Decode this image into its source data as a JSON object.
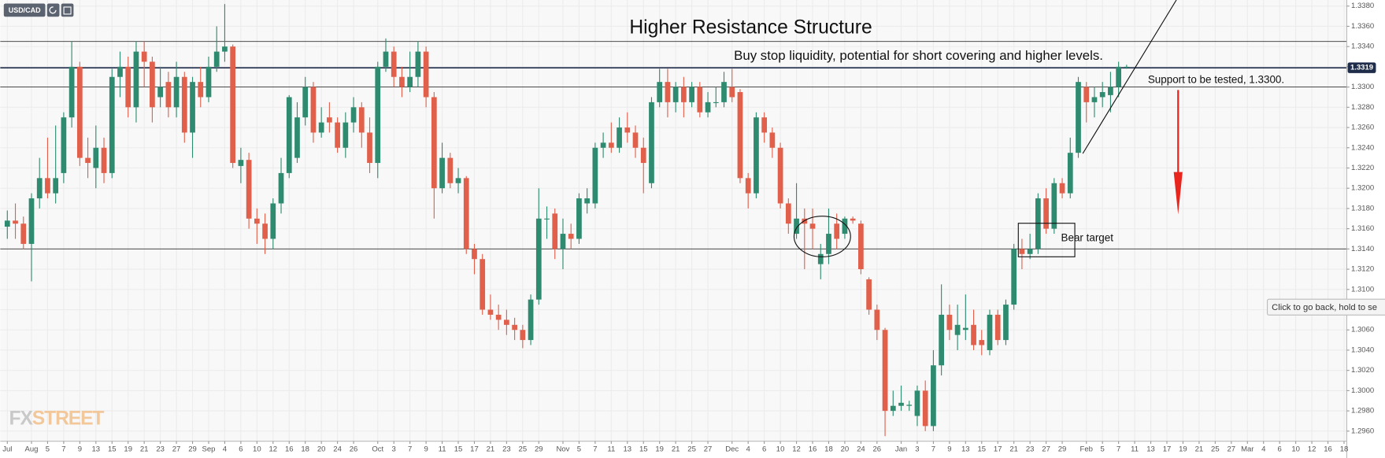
{
  "symbol": "USD/CAD",
  "watermark": {
    "left": "FX",
    "right": "STREET"
  },
  "tooltip": "Click to go back, hold to se",
  "chart_data": {
    "type": "candlestick",
    "title": "Higher Resistance Structure",
    "annotations": {
      "buy_stop": "Buy stop liquidity, potential for short covering and higher levels.",
      "support": "Support to be tested, 1.3300.",
      "bear_target": "Bear target"
    },
    "categories": [
      "Jul",
      null,
      null,
      "Aug",
      null,
      "5",
      null,
      "7",
      null,
      "9",
      null,
      "13",
      null,
      "15",
      null,
      "19",
      null,
      "21",
      null,
      "23",
      null,
      "27",
      null,
      "29",
      null,
      "Sep",
      null,
      "4",
      null,
      "6",
      null,
      "10",
      null,
      "12",
      null,
      "16",
      null,
      "18",
      null,
      "20",
      null,
      "24",
      null,
      "26",
      null,
      null,
      "Oct",
      null,
      "3",
      null,
      "7",
      null,
      "9",
      null,
      "11",
      null,
      "15",
      null,
      "17",
      null,
      "21",
      null,
      "23",
      null,
      "25",
      null,
      "29",
      null,
      null,
      "Nov",
      null,
      "5",
      null,
      "7",
      null,
      "11",
      null,
      "13",
      null,
      "15",
      null,
      "19",
      null,
      "21",
      null,
      "25",
      null,
      "27",
      null,
      null,
      "Dec",
      null,
      "4",
      null,
      "6",
      null,
      "10",
      null,
      "12",
      null,
      "16",
      null,
      "18",
      null,
      "20",
      null,
      "24",
      null,
      "26",
      null,
      null,
      "Jan",
      null,
      "3",
      null,
      "7",
      null,
      "9",
      null,
      "13",
      null,
      "15",
      null,
      "17",
      null,
      "21",
      null,
      "23",
      null,
      "27",
      null,
      "29",
      null,
      null,
      "Feb",
      null,
      "5",
      null,
      "7",
      null,
      "11",
      null,
      "13",
      null,
      "17",
      null,
      "19",
      null,
      "21",
      null,
      "25",
      null,
      "27",
      null,
      "Mar",
      null,
      "4",
      null,
      "6",
      null,
      "10",
      null,
      "12",
      null,
      "16",
      null,
      "18"
    ],
    "open": [
      1.3162,
      1.3168,
      1.3165,
      1.3145,
      1.319,
      1.321,
      1.3195,
      1.3215,
      1.327,
      1.332,
      1.323,
      1.322,
      1.324,
      1.3215,
      1.331,
      1.332,
      1.328,
      1.3335,
      1.3325,
      1.329,
      1.3305,
      1.328,
      1.331,
      1.3255,
      1.3305,
      1.329,
      1.332,
      1.3335,
      1.334,
      1.3222,
      1.3228,
      1.317,
      1.3165,
      1.315,
      1.3185,
      1.3215,
      1.323,
      1.327,
      1.33,
      1.3255,
      1.327,
      1.3265,
      1.324,
      1.3265,
      1.328,
      1.3255,
      1.3225,
      1.332,
      1.3335,
      1.331,
      1.33,
      1.331,
      1.3335,
      1.329,
      1.32,
      1.323,
      1.3205,
      1.321,
      1.314,
      1.313,
      1.308,
      1.3075,
      1.307,
      1.3065,
      1.306,
      1.305,
      1.309,
      1.317,
      1.3175,
      1.314,
      1.3155,
      1.315,
      1.3185,
      1.3185,
      1.324,
      1.3245,
      1.324,
      1.326,
      1.3255,
      1.324,
      1.3205,
      1.3285,
      1.3305,
      1.3285,
      1.33,
      1.3285,
      1.33,
      1.3275,
      1.3285,
      1.3285,
      1.33,
      1.3295,
      1.321,
      1.3195,
      1.327,
      1.3255,
      1.324,
      1.3185,
      1.3155,
      1.317,
      1.3165,
      1.3125,
      1.3135,
      1.3165,
      1.3155,
      1.317,
      1.3165,
      1.311,
      1.308,
      1.306,
      1.298,
      1.2985,
      1.2985,
      1.2975,
      1.3,
      1.2965,
      1.3025,
      1.3075,
      1.3055,
      1.306,
      1.3065,
      1.305,
      1.304,
      1.3075,
      1.305,
      1.3085,
      1.314,
      1.3135,
      1.314,
      1.319,
      1.316,
      1.3205,
      1.3195,
      1.3235,
      1.33,
      1.3285,
      1.329,
      1.3292,
      1.33,
      1.332,
      null,
      null,
      null,
      null,
      null,
      null,
      null,
      null,
      null,
      null,
      null,
      null,
      null,
      null,
      null,
      null,
      null,
      null,
      null,
      null,
      null,
      null,
      null,
      null,
      null,
      null,
      null
    ],
    "high": [
      1.3178,
      1.3185,
      1.3172,
      1.3195,
      1.323,
      1.325,
      1.3262,
      1.3275,
      1.3345,
      1.3325,
      1.325,
      1.3262,
      1.325,
      1.3318,
      1.3335,
      1.333,
      1.3345,
      1.3345,
      1.333,
      1.332,
      1.3315,
      1.3325,
      1.3315,
      1.331,
      1.332,
      1.333,
      1.336,
      1.3382,
      1.3342,
      1.324,
      1.3235,
      1.318,
      1.3175,
      1.319,
      1.323,
      1.3292,
      1.3285,
      1.331,
      1.3305,
      1.328,
      1.3285,
      1.327,
      1.3275,
      1.329,
      1.3285,
      1.327,
      1.3325,
      1.3348,
      1.334,
      1.332,
      1.3335,
      1.3345,
      1.334,
      1.3295,
      1.3245,
      1.3235,
      1.322,
      1.3212,
      1.3145,
      1.3135,
      1.3095,
      1.3085,
      1.308,
      1.3072,
      1.3065,
      1.3095,
      1.32,
      1.3182,
      1.318,
      1.317,
      1.3165,
      1.3195,
      1.32,
      1.3245,
      1.3255,
      1.3265,
      1.327,
      1.3275,
      1.3262,
      1.325,
      1.329,
      1.3318,
      1.3318,
      1.3305,
      1.331,
      1.3305,
      1.3305,
      1.3295,
      1.33,
      1.3315,
      1.3318,
      1.3298,
      1.3215,
      1.3275,
      1.3275,
      1.326,
      1.3245,
      1.319,
      1.3205,
      1.318,
      1.318,
      1.3145,
      1.318,
      1.3175,
      1.3172,
      1.3172,
      1.3168,
      1.3112,
      1.3085,
      1.3062,
      1.3,
      1.3005,
      1.299,
      1.3005,
      1.301,
      1.304,
      1.3105,
      1.3085,
      1.3085,
      1.3095,
      1.308,
      1.306,
      1.308,
      1.308,
      1.309,
      1.3145,
      1.315,
      1.3155,
      1.3195,
      1.32,
      1.321,
      1.321,
      1.325,
      1.331,
      1.3305,
      1.33,
      1.3305,
      1.3315,
      1.3325,
      1.3322,
      null,
      null,
      null,
      null,
      null,
      null,
      null,
      null,
      null,
      null,
      null,
      null,
      null,
      null,
      null,
      null,
      null,
      null,
      null,
      null,
      null,
      null,
      null,
      null,
      null,
      null,
      null
    ],
    "low": [
      1.315,
      1.315,
      1.314,
      1.3108,
      1.318,
      1.319,
      1.3185,
      1.3205,
      1.326,
      1.3222,
      1.321,
      1.32,
      1.3205,
      1.321,
      1.329,
      1.327,
      1.3265,
      1.33,
      1.3265,
      1.328,
      1.327,
      1.327,
      1.3245,
      1.323,
      1.328,
      1.3285,
      1.3315,
      1.3325,
      1.322,
      1.3205,
      1.316,
      1.3145,
      1.3135,
      1.314,
      1.3175,
      1.321,
      1.3225,
      1.3262,
      1.3245,
      1.325,
      1.3255,
      1.3235,
      1.323,
      1.3255,
      1.324,
      1.3215,
      1.321,
      1.3315,
      1.33,
      1.329,
      1.3295,
      1.33,
      1.328,
      1.317,
      1.3195,
      1.32,
      1.3195,
      1.3135,
      1.3115,
      1.3075,
      1.307,
      1.306,
      1.3055,
      1.305,
      1.3042,
      1.3045,
      1.3085,
      1.315,
      1.313,
      1.312,
      1.314,
      1.3145,
      1.3175,
      1.318,
      1.323,
      1.3235,
      1.3235,
      1.3245,
      1.323,
      1.3195,
      1.32,
      1.328,
      1.327,
      1.3275,
      1.327,
      1.328,
      1.327,
      1.327,
      1.328,
      1.328,
      1.3285,
      1.3205,
      1.318,
      1.319,
      1.3245,
      1.323,
      1.318,
      1.3155,
      1.315,
      1.312,
      1.314,
      1.311,
      1.3125,
      1.314,
      1.315,
      1.3165,
      1.3115,
      1.3075,
      1.305,
      1.2955,
      1.2975,
      1.298,
      1.298,
      1.2965,
      1.296,
      1.296,
      1.3015,
      1.305,
      1.304,
      1.305,
      1.304,
      1.3035,
      1.3035,
      1.3045,
      1.3045,
      1.308,
      1.312,
      1.313,
      1.3135,
      1.3155,
      1.3155,
      1.319,
      1.319,
      1.323,
      1.3265,
      1.327,
      1.328,
      1.3275,
      1.329,
      1.3318,
      null,
      null,
      null,
      null,
      null,
      null,
      null,
      null,
      null,
      null,
      null,
      null,
      null,
      null,
      null,
      null,
      null,
      null,
      null,
      null,
      null,
      null,
      null,
      null,
      null,
      null,
      null
    ],
    "close": [
      1.3168,
      1.3165,
      1.3145,
      1.319,
      1.321,
      1.3195,
      1.321,
      1.327,
      1.332,
      1.323,
      1.3225,
      1.324,
      1.3215,
      1.331,
      1.332,
      1.328,
      1.3335,
      1.3325,
      1.328,
      1.33,
      1.328,
      1.331,
      1.3255,
      1.3305,
      1.329,
      1.332,
      1.3335,
      1.334,
      1.3225,
      1.3228,
      1.317,
      1.3165,
      1.315,
      1.3185,
      1.3215,
      1.329,
      1.327,
      1.33,
      1.3255,
      1.3265,
      1.3265,
      1.324,
      1.3265,
      1.328,
      1.3255,
      1.3225,
      1.332,
      1.3335,
      1.331,
      1.33,
      1.331,
      1.3335,
      1.329,
      1.32,
      1.323,
      1.3205,
      1.321,
      1.314,
      1.313,
      1.308,
      1.3075,
      1.307,
      1.3065,
      1.306,
      1.305,
      1.309,
      1.317,
      1.317,
      1.314,
      1.3155,
      1.315,
      1.319,
      1.319,
      1.324,
      1.3245,
      1.324,
      1.326,
      1.3255,
      1.324,
      1.3225,
      1.3285,
      1.3305,
      1.3285,
      1.33,
      1.3285,
      1.33,
      1.3275,
      1.3285,
      1.3285,
      1.3305,
      1.329,
      1.321,
      1.3195,
      1.327,
      1.3255,
      1.324,
      1.3185,
      1.3165,
      1.317,
      1.3165,
      1.316,
      1.3135,
      1.3155,
      1.315,
      1.317,
      1.3168,
      1.312,
      1.308,
      1.306,
      1.298,
      1.2985,
      1.2988,
      1.2986,
      1.3,
      1.2965,
      1.3025,
      1.3075,
      1.306,
      1.3065,
      1.3062,
      1.3045,
      1.3045,
      1.3075,
      1.305,
      1.3085,
      1.314,
      1.3135,
      1.314,
      1.319,
      1.316,
      1.3205,
      1.3195,
      1.3235,
      1.3305,
      1.3285,
      1.329,
      1.3295,
      1.33,
      1.332,
      1.332,
      null,
      null,
      null,
      null,
      null,
      null,
      null,
      null,
      null,
      null,
      null,
      null,
      null,
      null,
      null,
      null,
      null,
      null,
      null,
      null,
      null,
      null,
      null,
      null,
      null,
      null,
      null
    ],
    "up_color": "#2e8b6f",
    "down_color": "#e0604c",
    "ylim": [
      1.295,
      1.3386
    ],
    "yticks": [
      {
        "value": 1.296,
        "label": "1.2960"
      },
      {
        "value": 1.298,
        "label": "1.2980"
      },
      {
        "value": 1.3,
        "label": "1.3000"
      },
      {
        "value": 1.302,
        "label": "1.3020"
      },
      {
        "value": 1.304,
        "label": "1.3040"
      },
      {
        "value": 1.306,
        "label": "1.3060"
      },
      {
        "value": 1.308,
        "label": "1.3080"
      },
      {
        "value": 1.31,
        "label": "1.3100"
      },
      {
        "value": 1.312,
        "label": "1.3120"
      },
      {
        "value": 1.314,
        "label": "1.3140"
      },
      {
        "value": 1.316,
        "label": "1.3160"
      },
      {
        "value": 1.318,
        "label": "1.3180"
      },
      {
        "value": 1.32,
        "label": "1.3200"
      },
      {
        "value": 1.322,
        "label": "1.3220"
      },
      {
        "value": 1.324,
        "label": "1.3240"
      },
      {
        "value": 1.326,
        "label": "1.3260"
      },
      {
        "value": 1.328,
        "label": "1.3280"
      },
      {
        "value": 1.33,
        "label": "1.3300"
      },
      {
        "value": 1.332,
        "label": "1.3320"
      },
      {
        "value": 1.334,
        "label": "1.3340"
      },
      {
        "value": 1.336,
        "label": "1.3360"
      },
      {
        "value": 1.338,
        "label": "1.3380"
      }
    ],
    "levels": [
      1.3345,
      1.33,
      1.314
    ],
    "last_price": {
      "value": 1.3319,
      "label": "1.3319"
    },
    "grid": true
  }
}
